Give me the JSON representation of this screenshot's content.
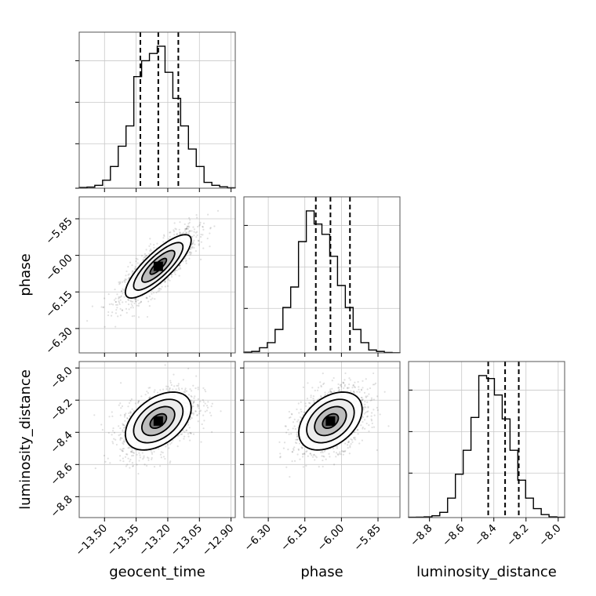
{
  "chart_data": {
    "type": "corner",
    "parameters": [
      "geocent_time",
      "phase",
      "luminosity_distance"
    ],
    "ranges": {
      "geocent_time": [
        -13.62,
        -12.88
      ],
      "phase": [
        -6.4,
        -5.76
      ],
      "luminosity_distance": [
        -8.93,
        -7.96
      ]
    },
    "ticks": {
      "geocent_time": [
        -13.5,
        -13.35,
        -13.2,
        -13.05,
        -12.9
      ],
      "phase": [
        -6.3,
        -6.15,
        -6.0,
        -5.85
      ],
      "luminosity_distance": [
        -8.8,
        -8.6,
        -8.4,
        -8.2,
        -8.0
      ]
    },
    "tick_labels": {
      "geocent_time": [
        "−13.50",
        "−13.35",
        "−13.20",
        "−13.05",
        "−12.90"
      ],
      "phase": [
        "−6.30",
        "−6.15",
        "−6.00",
        "−5.85"
      ],
      "luminosity_distance": [
        "−8.8",
        "−8.6",
        "−8.4",
        "−8.2",
        "−8.0"
      ]
    },
    "quantiles": {
      "geocent_time": [
        -13.33,
        -13.245,
        -13.15
      ],
      "phase": [
        -6.105,
        -6.045,
        -5.965
      ],
      "luminosity_distance": [
        -8.435,
        -8.33,
        -8.245
      ]
    },
    "histograms": {
      "geocent_time": {
        "edges": [
          -13.62,
          -13.583,
          -13.546,
          -13.509,
          -13.472,
          -13.435,
          -13.398,
          -13.361,
          -13.324,
          -13.287,
          -13.25,
          -13.213,
          -13.176,
          -13.139,
          -13.102,
          -13.065,
          -13.028,
          -12.991,
          -12.954,
          -12.917,
          -12.88
        ],
        "counts": [
          0.005,
          0.008,
          0.02,
          0.055,
          0.15,
          0.29,
          0.43,
          0.77,
          0.88,
          0.93,
          0.98,
          0.8,
          0.62,
          0.43,
          0.27,
          0.15,
          0.04,
          0.02,
          0.01,
          0.003
        ]
      },
      "phase": {
        "edges": [
          -6.4,
          -6.368,
          -6.336,
          -6.304,
          -6.272,
          -6.24,
          -6.208,
          -6.176,
          -6.144,
          -6.112,
          -6.08,
          -6.048,
          -6.016,
          -5.984,
          -5.952,
          -5.92,
          -5.888,
          -5.856,
          -5.824,
          -5.792,
          -5.76
        ],
        "counts": [
          0.005,
          0.01,
          0.035,
          0.07,
          0.16,
          0.31,
          0.45,
          0.76,
          0.97,
          0.88,
          0.81,
          0.66,
          0.46,
          0.31,
          0.16,
          0.07,
          0.02,
          0.01,
          0.003,
          0.001
        ]
      },
      "luminosity_distance": {
        "edges": [
          -8.93,
          -8.8815,
          -8.833,
          -8.7845,
          -8.736,
          -8.6875,
          -8.639,
          -8.5905,
          -8.542,
          -8.4935,
          -8.445,
          -8.3965,
          -8.348,
          -8.2995,
          -8.251,
          -8.2025,
          -8.154,
          -8.1055,
          -8.057,
          -8.0085,
          -7.96
        ],
        "counts": [
          0.002,
          0.003,
          0.005,
          0.012,
          0.035,
          0.13,
          0.29,
          0.45,
          0.67,
          0.95,
          0.93,
          0.82,
          0.66,
          0.45,
          0.25,
          0.13,
          0.06,
          0.02,
          0.005,
          0.002
        ]
      }
    },
    "joint": {
      "phase|geocent_time": {
        "mean": [
          -13.245,
          -6.045
        ],
        "sd": [
          0.078,
          0.065
        ],
        "rho": 0.82
      },
      "luminosity_distance|geocent_time": {
        "mean": [
          -13.245,
          -8.33
        ],
        "sd": [
          0.078,
          0.09
        ],
        "rho": 0.45
      },
      "luminosity_distance|phase": {
        "mean": [
          -6.045,
          -8.33
        ],
        "sd": [
          0.065,
          0.09
        ],
        "rho": 0.4
      }
    },
    "contour_levels": [
      0.5,
      1.0,
      1.5,
      2.0
    ],
    "grid": true
  }
}
